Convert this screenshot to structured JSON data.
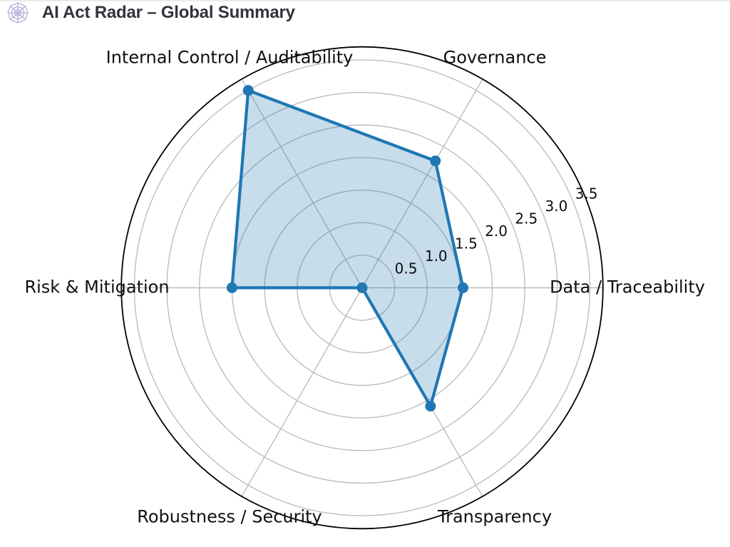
{
  "header": {
    "icon": "spider-web-icon",
    "icon_color": "#b3b1d8",
    "title": "AI Act Radar – Global Summary",
    "title_color": "#31333f"
  },
  "chart_data": {
    "type": "radar",
    "title": "AI Act Radar – Global Summary",
    "categories": [
      "Data / Traceability",
      "Governance",
      "Internal Control / Auditability",
      "Risk & Mitigation",
      "Robustness / Security",
      "Transparency"
    ],
    "values": [
      1.55,
      2.25,
      3.5,
      2.0,
      0.0,
      2.1
    ],
    "angles_deg": [
      0,
      60,
      120,
      180,
      240,
      300
    ],
    "ticks": [
      0.5,
      1.0,
      1.5,
      2.0,
      2.5,
      3.0,
      3.5
    ],
    "tick_labels": [
      "0.5",
      "1.0",
      "1.5",
      "2.0",
      "2.5",
      "3.0",
      "3.5"
    ],
    "rmin": 0,
    "rmax": 3.7,
    "tick_label_angle_deg": 22.5,
    "grid": true,
    "legend_position": "none",
    "colors": {
      "series_line": "#1f77b4",
      "series_fill": "#1f77b4",
      "series_fill_opacity": 0.25,
      "grid_line": "#bdbdbd",
      "outer_circle": "#000000",
      "label_text": "#0f0f0f"
    }
  }
}
